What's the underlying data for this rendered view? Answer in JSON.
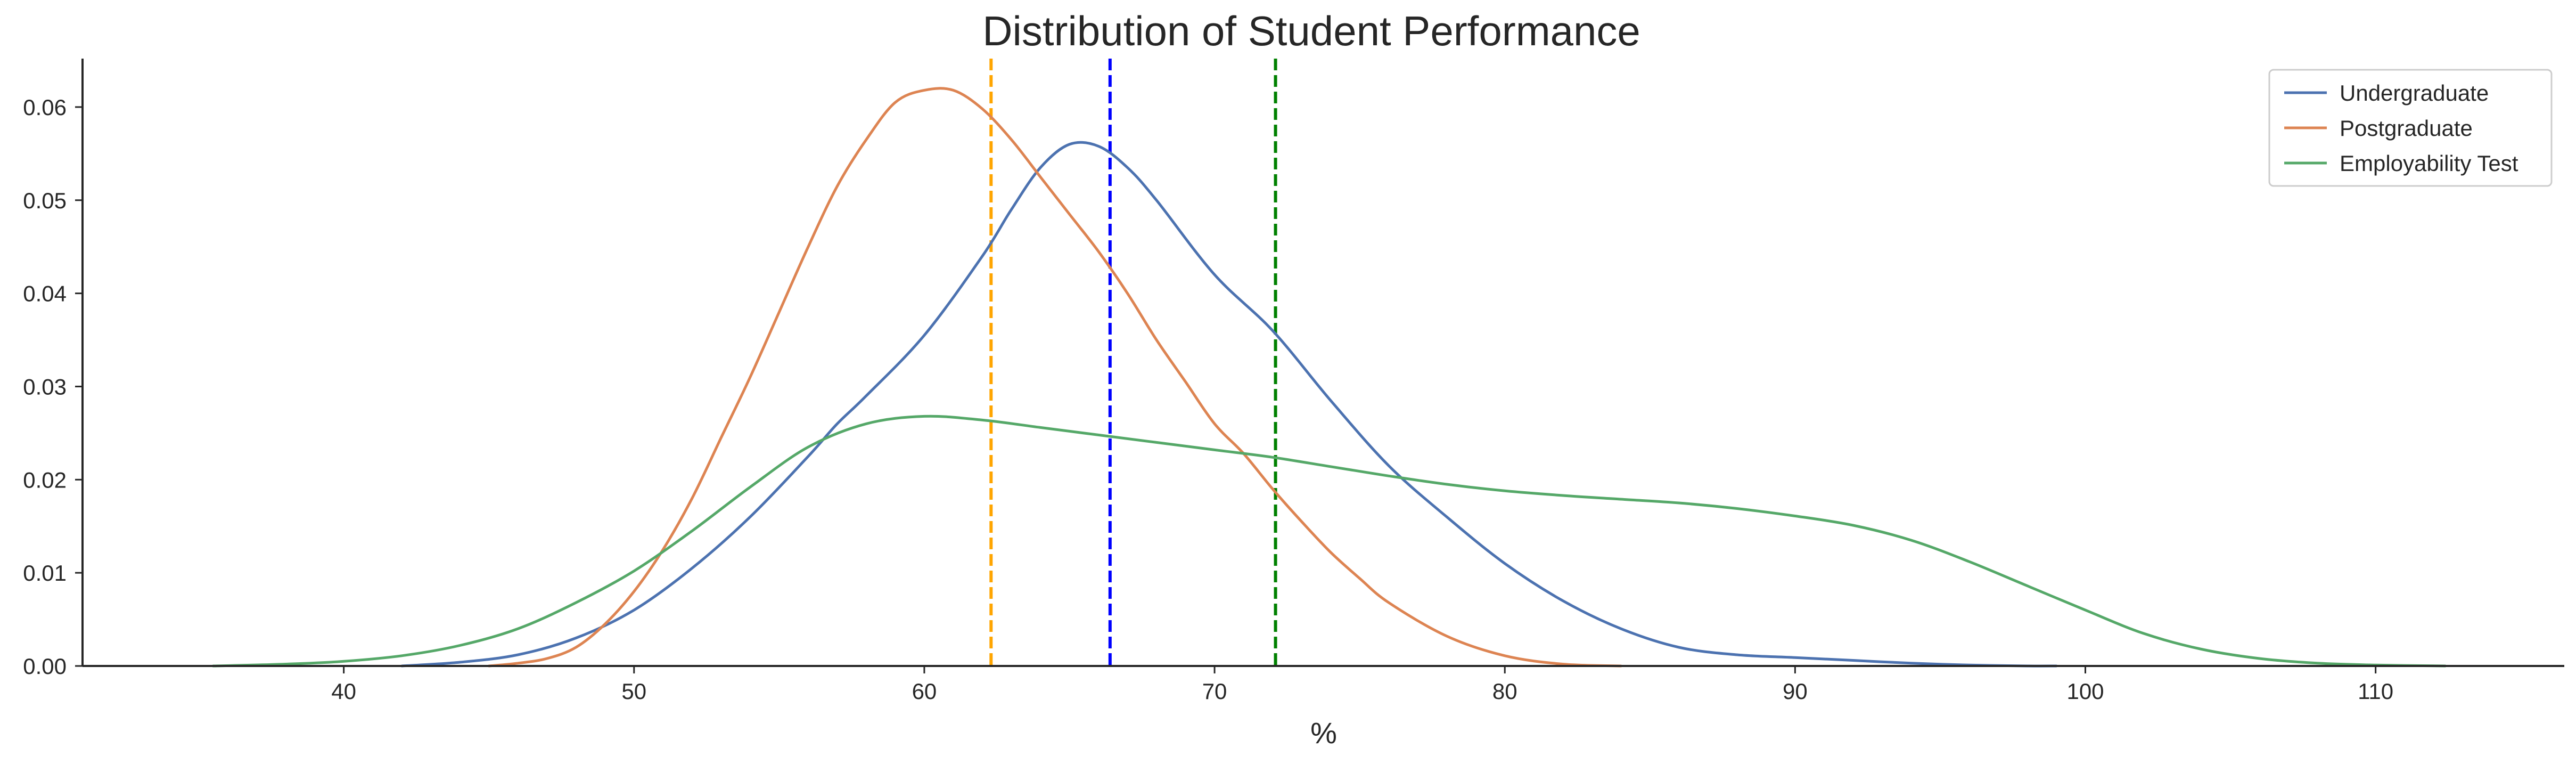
{
  "chart_data": {
    "type": "line",
    "title": "Distribution of Student Performance",
    "xlabel": "%",
    "ylabel": "",
    "xlim": [
      31,
      116.5
    ],
    "ylim": [
      0,
      0.0652
    ],
    "xticks": [
      40,
      50,
      60,
      70,
      80,
      90,
      100,
      110
    ],
    "yticks": [
      0.0,
      0.01,
      0.02,
      0.03,
      0.04,
      0.05,
      0.06
    ],
    "ytick_labels": [
      "0.00",
      "0.01",
      "0.02",
      "0.03",
      "0.04",
      "0.05",
      "0.06"
    ],
    "grid": false,
    "legend_position": "top-right",
    "series": [
      {
        "name": "Undergraduate",
        "color": "#4c72b0",
        "x": [
          42,
          44,
          46,
          48,
          50,
          52,
          54,
          56,
          57,
          58,
          60,
          62,
          63,
          64,
          65,
          66,
          67,
          68,
          70,
          72,
          74,
          76,
          78,
          80,
          82,
          84,
          86,
          88,
          90,
          92,
          94,
          96,
          98,
          99
        ],
        "y": [
          0.0,
          0.0004,
          0.0012,
          0.003,
          0.006,
          0.0105,
          0.016,
          0.0225,
          0.026,
          0.029,
          0.0355,
          0.044,
          0.049,
          0.0535,
          0.056,
          0.0558,
          0.0535,
          0.05,
          0.042,
          0.036,
          0.0285,
          0.0215,
          0.016,
          0.011,
          0.007,
          0.004,
          0.002,
          0.0012,
          0.0009,
          0.0006,
          0.0003,
          0.0001,
          0.0,
          0.0
        ]
      },
      {
        "name": "Postgraduate",
        "color": "#dd8452",
        "x": [
          45,
          46,
          47,
          48,
          49,
          50,
          51,
          52,
          53,
          54,
          55,
          56,
          57,
          58,
          59,
          60,
          61,
          62,
          63,
          64,
          65,
          66,
          67,
          68,
          69,
          70,
          71,
          72,
          73,
          74,
          75,
          76,
          78,
          80,
          82,
          84
        ],
        "y": [
          0.0,
          0.0003,
          0.0008,
          0.002,
          0.0045,
          0.008,
          0.0125,
          0.018,
          0.0245,
          0.031,
          0.038,
          0.045,
          0.0515,
          0.0565,
          0.0605,
          0.0618,
          0.0618,
          0.0598,
          0.0565,
          0.0525,
          0.0485,
          0.0445,
          0.04,
          0.035,
          0.0305,
          0.026,
          0.0228,
          0.019,
          0.0155,
          0.0122,
          0.0094,
          0.0068,
          0.0032,
          0.0011,
          0.0002,
          0.0
        ]
      },
      {
        "name": "Employability Test",
        "color": "#55a868",
        "x": [
          35.5,
          38,
          40,
          42,
          44,
          46,
          48,
          50,
          52,
          54,
          56,
          58,
          60,
          62,
          64,
          66,
          68,
          70,
          72,
          74,
          76,
          78,
          80,
          82,
          84,
          86,
          88,
          90,
          92,
          94,
          96,
          98,
          100,
          102,
          104,
          106,
          108,
          110,
          112.4
        ],
        "y": [
          0.0,
          0.0002,
          0.0005,
          0.0011,
          0.0022,
          0.004,
          0.0068,
          0.0102,
          0.0145,
          0.0192,
          0.0235,
          0.026,
          0.0268,
          0.0264,
          0.0256,
          0.0248,
          0.024,
          0.0232,
          0.0224,
          0.0214,
          0.0204,
          0.0195,
          0.0188,
          0.0183,
          0.0179,
          0.0175,
          0.0169,
          0.0161,
          0.0151,
          0.0135,
          0.0112,
          0.0086,
          0.006,
          0.0035,
          0.0018,
          0.0008,
          0.0003,
          0.0001,
          0.0
        ]
      }
    ],
    "reference_lines": [
      {
        "x": 62.3,
        "color": "#ffa500",
        "style": "dashed"
      },
      {
        "x": 66.4,
        "color": "#0000ff",
        "style": "dashed"
      },
      {
        "x": 72.1,
        "color": "#008000",
        "style": "dashed"
      }
    ]
  }
}
